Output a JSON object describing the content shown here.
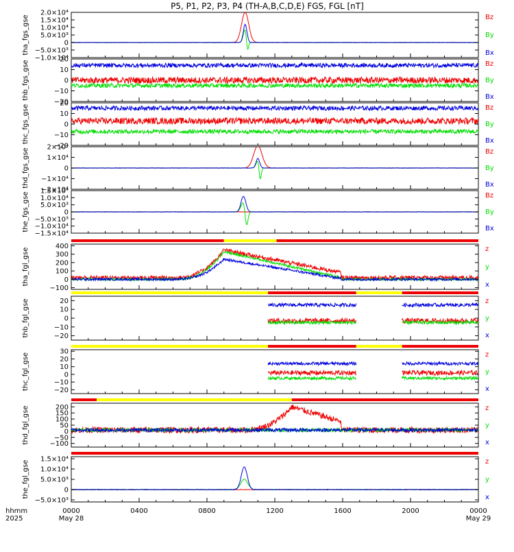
{
  "title": "P5, P1, P2, P3, P4 (TH-A,B,C,D,E) FGS, FGL [nT]",
  "colors": {
    "x": "#0000dd",
    "y": "#00dd00",
    "z": "#ee0000",
    "bar_red": "#ee0000",
    "bar_yellow": "#ffff00",
    "frame": "#000000"
  },
  "time_axis": {
    "label_line1": "hhmm",
    "label_line2": "2025",
    "ticks": [
      {
        "hours": 0,
        "label": "0000",
        "date": "May 28"
      },
      {
        "hours": 4,
        "label": "0400",
        "date": ""
      },
      {
        "hours": 8,
        "label": "0800",
        "date": ""
      },
      {
        "hours": 12,
        "label": "1200",
        "date": ""
      },
      {
        "hours": 16,
        "label": "1600",
        "date": ""
      },
      {
        "hours": 20,
        "label": "2000",
        "date": ""
      },
      {
        "hours": 24,
        "label": "0000",
        "date": "May 29"
      }
    ]
  },
  "chart_data": [
    {
      "type": "line",
      "name": "tha_fgs_gse",
      "ylabel": "tha_fgs_gse",
      "ylim": [
        -10000,
        20000
      ],
      "yticks": [
        {
          "v": 20000,
          "t": "2.0×10⁴"
        },
        {
          "v": 15000,
          "t": "1.5×10⁴"
        },
        {
          "v": 10000,
          "t": "1.0×10⁴"
        },
        {
          "v": 5000,
          "t": "5.0×10³"
        },
        {
          "v": 0,
          "t": "0"
        },
        {
          "v": -5000,
          "t": "−5.0×10³"
        },
        {
          "v": -10000,
          "t": "−1.0×10⁴"
        }
      ],
      "legend": [
        "Bz",
        "By",
        "Bx"
      ],
      "coverage": [
        [
          0,
          24
        ]
      ],
      "series": [
        {
          "name": "Bz",
          "color": "z",
          "base": 0,
          "noise": 100,
          "pulse": {
            "center": 10.25,
            "width": 0.3,
            "amp": 20000
          }
        },
        {
          "name": "By",
          "color": "y",
          "base": 0,
          "noise": 100,
          "pulse": {
            "center": 10.25,
            "width": 0.15,
            "amp": 9000,
            "dip": -8000
          }
        },
        {
          "name": "Bx",
          "color": "x",
          "base": 0,
          "noise": 100,
          "pulse": {
            "center": 10.25,
            "width": 0.15,
            "amp": 12000
          }
        }
      ]
    },
    {
      "type": "line",
      "name": "thb_fgs_gse",
      "ylabel": "thb_fgs_gse",
      "ylim": [
        -20,
        20
      ],
      "yticks": [
        {
          "v": 20,
          "t": "20"
        },
        {
          "v": 10,
          "t": "10"
        },
        {
          "v": 0,
          "t": "0"
        },
        {
          "v": -10,
          "t": "−10"
        },
        {
          "v": -20,
          "t": "−20"
        }
      ],
      "legend": [
        "Bz",
        "By",
        "Bx"
      ],
      "coverage": [
        [
          0,
          24
        ]
      ],
      "series": [
        {
          "name": "Bz",
          "color": "z",
          "base": 0,
          "noise": 3
        },
        {
          "name": "By",
          "color": "y",
          "base": -5,
          "noise": 2
        },
        {
          "name": "Bx",
          "color": "x",
          "base": 14,
          "noise": 2
        }
      ]
    },
    {
      "type": "line",
      "name": "thc_fgs_gse",
      "ylabel": "thc_fgs_gse",
      "ylim": [
        -20,
        20
      ],
      "yticks": [
        {
          "v": 20,
          "t": "20"
        },
        {
          "v": 10,
          "t": "10"
        },
        {
          "v": 0,
          "t": "0"
        },
        {
          "v": -10,
          "t": "−10"
        },
        {
          "v": -20,
          "t": "−20"
        }
      ],
      "legend": [
        "Bz",
        "By",
        "Bx"
      ],
      "coverage": [
        [
          0,
          24
        ]
      ],
      "series": [
        {
          "name": "Bz",
          "color": "z",
          "base": 3,
          "noise": 3
        },
        {
          "name": "By",
          "color": "y",
          "base": -7,
          "noise": 2
        },
        {
          "name": "Bx",
          "color": "x",
          "base": 15,
          "noise": 2
        }
      ]
    },
    {
      "type": "line",
      "name": "thd_fgs_gse",
      "ylabel": "thd_fgs_gse",
      "ylim": [
        -20000,
        20000
      ],
      "yticks": [
        {
          "v": 20000,
          "t": "2×10⁴"
        },
        {
          "v": 10000,
          "t": "1×10⁴"
        },
        {
          "v": 0,
          "t": "0"
        },
        {
          "v": -10000,
          "t": "−1×10⁴"
        },
        {
          "v": -20000,
          "t": "−2×10⁴"
        }
      ],
      "legend": [
        "Bz",
        "By",
        "Bx"
      ],
      "coverage": [
        [
          0,
          24
        ]
      ],
      "series": [
        {
          "name": "Bz",
          "color": "z",
          "base": 0,
          "noise": 150,
          "pulse": {
            "center": 11.0,
            "width": 0.35,
            "amp": 21000
          }
        },
        {
          "name": "By",
          "color": "y",
          "base": 0,
          "noise": 150,
          "pulse": {
            "center": 11.0,
            "width": 0.15,
            "amp": 7000,
            "dip": -13000
          }
        },
        {
          "name": "Bx",
          "color": "x",
          "base": 0,
          "noise": 150,
          "pulse": {
            "center": 11.0,
            "width": 0.15,
            "amp": 9000
          }
        }
      ]
    },
    {
      "type": "line",
      "name": "the_fgs_gse",
      "ylabel": "the_fgs_gse",
      "ylim": [
        -15000,
        15000
      ],
      "yticks": [
        {
          "v": 15000,
          "t": "1.5×10⁴"
        },
        {
          "v": 10000,
          "t": "1.0×10⁴"
        },
        {
          "v": 5000,
          "t": "5.0×10³"
        },
        {
          "v": 0,
          "t": "0"
        },
        {
          "v": -5000,
          "t": "−5.0×10³"
        },
        {
          "v": -10000,
          "t": "−1.0×10⁴"
        },
        {
          "v": -15000,
          "t": "−1.5×10⁴"
        }
      ],
      "legend": [
        "Bz",
        "By",
        "Bx"
      ],
      "coverage": [
        [
          0,
          24
        ]
      ],
      "series": [
        {
          "name": "Bz",
          "color": "z",
          "base": 0,
          "noise": 120
        },
        {
          "name": "By",
          "color": "y",
          "base": 0,
          "noise": 120,
          "pulse": {
            "center": 10.15,
            "width": 0.2,
            "amp": 7000,
            "dip": -12000
          }
        },
        {
          "name": "Bx",
          "color": "x",
          "base": 0,
          "noise": 120,
          "pulse": {
            "center": 10.15,
            "width": 0.2,
            "amp": 11000
          }
        }
      ]
    },
    {
      "type": "line",
      "name": "tha_fgl_gse",
      "ylabel": "tha_fgl_gse",
      "ylim": [
        -120,
        420
      ],
      "yticks": [
        {
          "v": 400,
          "t": "400"
        },
        {
          "v": 300,
          "t": "300"
        },
        {
          "v": 200,
          "t": "200"
        },
        {
          "v": 100,
          "t": "100"
        },
        {
          "v": 0,
          "t": "0"
        },
        {
          "v": -100,
          "t": "−100"
        }
      ],
      "legend": [
        "z",
        "y",
        "x"
      ],
      "coverage": [
        [
          0,
          24
        ]
      ],
      "status_bar": [
        {
          "from": 0,
          "to": 9,
          "c": "bar_red"
        },
        {
          "from": 9,
          "to": 12.1,
          "c": "bar_yellow"
        },
        {
          "from": 12.1,
          "to": 24,
          "c": "bar_red"
        }
      ],
      "series": [
        {
          "name": "z",
          "color": "z",
          "base": 20,
          "noise": 25,
          "ramp": {
            "peak_time": 9,
            "peak": 350,
            "end_time": 15.9,
            "end": 80
          }
        },
        {
          "name": "y",
          "color": "y",
          "base": 0,
          "noise": 15,
          "ramp": {
            "peak_time": 9,
            "peak": 330,
            "end_time": 15.9,
            "end": 20
          }
        },
        {
          "name": "x",
          "color": "x",
          "base": 0,
          "noise": 15,
          "ramp": {
            "peak_time": 9,
            "peak": 240,
            "end_time": 15.9,
            "end": 10
          }
        }
      ]
    },
    {
      "type": "line",
      "name": "thb_fgl_gse",
      "ylabel": "thb_fgl_gse",
      "ylim": [
        -25,
        25
      ],
      "yticks": [
        {
          "v": 20,
          "t": "20"
        },
        {
          "v": 10,
          "t": "10"
        },
        {
          "v": 0,
          "t": "0"
        },
        {
          "v": -10,
          "t": "−10"
        },
        {
          "v": -20,
          "t": "−20"
        }
      ],
      "legend": [
        "z",
        "y",
        "x"
      ],
      "coverage": [
        [
          11.6,
          16.8
        ],
        [
          19.5,
          24
        ]
      ],
      "status_bar": [
        {
          "from": 0,
          "to": 11.6,
          "c": "bar_yellow"
        },
        {
          "from": 11.6,
          "to": 16.8,
          "c": "bar_red"
        },
        {
          "from": 16.8,
          "to": 19.5,
          "c": "bar_yellow"
        },
        {
          "from": 19.5,
          "to": 24,
          "c": "bar_red"
        }
      ],
      "series": [
        {
          "name": "z",
          "color": "z",
          "base": -3,
          "noise": 3
        },
        {
          "name": "y",
          "color": "y",
          "base": -5,
          "noise": 2
        },
        {
          "name": "x",
          "color": "x",
          "base": 15,
          "noise": 2
        }
      ]
    },
    {
      "type": "line",
      "name": "thc_fgl_gse",
      "ylabel": "thc_fgl_gse",
      "ylim": [
        -25,
        32
      ],
      "yticks": [
        {
          "v": 30,
          "t": "30"
        },
        {
          "v": 20,
          "t": "20"
        },
        {
          "v": 10,
          "t": "10"
        },
        {
          "v": 0,
          "t": "0"
        },
        {
          "v": -10,
          "t": "−10"
        },
        {
          "v": -20,
          "t": "−20"
        }
      ],
      "legend": [
        "z",
        "y",
        "x"
      ],
      "coverage": [
        [
          11.6,
          16.8
        ],
        [
          19.5,
          24
        ]
      ],
      "status_bar": [
        {
          "from": 0,
          "to": 11.6,
          "c": "bar_yellow"
        },
        {
          "from": 11.6,
          "to": 16.8,
          "c": "bar_red"
        },
        {
          "from": 16.8,
          "to": 19.5,
          "c": "bar_yellow"
        },
        {
          "from": 19.5,
          "to": 24,
          "c": "bar_red"
        }
      ],
      "series": [
        {
          "name": "z",
          "color": "z",
          "base": 2,
          "noise": 3
        },
        {
          "name": "y",
          "color": "y",
          "base": -5,
          "noise": 2
        },
        {
          "name": "x",
          "color": "x",
          "base": 14,
          "noise": 2
        }
      ]
    },
    {
      "type": "line",
      "name": "thd_fgl_gse",
      "ylabel": "thd_fgl_gse",
      "ylim": [
        -130,
        230
      ],
      "yticks": [
        {
          "v": 200,
          "t": "200"
        },
        {
          "v": 150,
          "t": "150"
        },
        {
          "v": 100,
          "t": "100"
        },
        {
          "v": 50,
          "t": "50"
        },
        {
          "v": 0,
          "t": "0"
        },
        {
          "v": -50,
          "t": "−50"
        },
        {
          "v": -100,
          "t": "−100"
        }
      ],
      "legend": [
        "z",
        "y",
        "x"
      ],
      "coverage": [
        [
          0,
          24
        ]
      ],
      "status_bar": [
        {
          "from": 0,
          "to": 1.5,
          "c": "bar_red"
        },
        {
          "from": 1.5,
          "to": 13,
          "c": "bar_yellow"
        },
        {
          "from": 13,
          "to": 24,
          "c": "bar_red"
        }
      ],
      "series": [
        {
          "name": "z",
          "color": "z",
          "base": 10,
          "noise": 25,
          "ramp": {
            "peak_time": 13,
            "peak": 200,
            "end_time": 15.9,
            "end": 80
          }
        },
        {
          "name": "y",
          "color": "y",
          "base": 10,
          "noise": 15
        },
        {
          "name": "x",
          "color": "x",
          "base": 10,
          "noise": 15
        }
      ]
    },
    {
      "type": "line",
      "name": "the_fgl_gse",
      "ylabel": "the_fgl_gse",
      "ylim": [
        -6000,
        16000
      ],
      "yticks": [
        {
          "v": 15000,
          "t": "1.5×10⁴"
        },
        {
          "v": 10000,
          "t": "1.0×10⁴"
        },
        {
          "v": 5000,
          "t": "5.0×10³"
        },
        {
          "v": 0,
          "t": "0"
        },
        {
          "v": -5000,
          "t": "−5.0×10³"
        }
      ],
      "legend": [
        "z",
        "y",
        "x"
      ],
      "coverage": [
        [
          0,
          24
        ]
      ],
      "status_bar": [
        {
          "from": 0,
          "to": 24,
          "c": "bar_red"
        }
      ],
      "series": [
        {
          "name": "z",
          "color": "z",
          "base": 0,
          "noise": 150
        },
        {
          "name": "y",
          "color": "y",
          "base": 0,
          "noise": 150,
          "pulse": {
            "center": 10.2,
            "width": 0.3,
            "amp": 5000
          }
        },
        {
          "name": "x",
          "color": "x",
          "base": 0,
          "noise": 150,
          "pulse": {
            "center": 10.2,
            "width": 0.25,
            "amp": 11000
          }
        }
      ]
    }
  ]
}
